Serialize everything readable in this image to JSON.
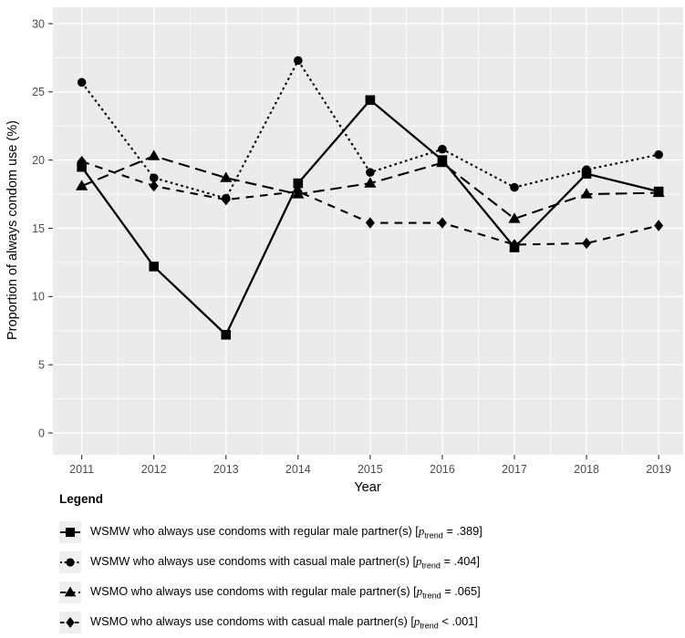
{
  "figure": {
    "panel_bg": "#ebebeb",
    "grid_color": "#ffffff",
    "series_color": "#000000",
    "tick_color": "#333333",
    "tick_label_color": "#4d4d4d"
  },
  "chart_data": {
    "type": "line",
    "title": "",
    "xlabel": "Year",
    "ylabel": "Proportion of always condom use (%)",
    "x": [
      2011,
      2012,
      2013,
      2014,
      2015,
      2016,
      2017,
      2018,
      2019
    ],
    "y_ticks": [
      0,
      5,
      10,
      15,
      20,
      25,
      30
    ],
    "xlim": [
      2010.6,
      2019.34
    ],
    "ylim": [
      -1.6,
      31.2
    ],
    "grid": "major+minor, white on gray panel",
    "legend_position": "bottom-left",
    "series": [
      {
        "name": "WSMW who always use condoms with regular male partner(s) [p trend = .389]",
        "marker": "square",
        "linestyle": "solid",
        "values": [
          19.5,
          12.2,
          7.2,
          18.3,
          24.4,
          20.0,
          13.6,
          19.0,
          17.7
        ]
      },
      {
        "name": "WSMW who always use condoms with casual male partner(s) [p trend = .404]",
        "marker": "circle",
        "linestyle": "dotted",
        "values": [
          25.7,
          18.7,
          17.2,
          27.3,
          19.1,
          20.8,
          18.0,
          19.3,
          20.4
        ]
      },
      {
        "name": "WSMO who always use condoms with regular male partner(s) [p trend = .065]",
        "marker": "triangle",
        "linestyle": "longdash",
        "values": [
          18.1,
          20.3,
          18.7,
          17.5,
          18.3,
          19.8,
          15.7,
          17.5,
          17.6
        ]
      },
      {
        "name": "WSMO who always use condoms with casual male partner(s) [p trend < .001]",
        "marker": "diamond",
        "linestyle": "dashed",
        "values": [
          19.9,
          18.1,
          17.1,
          17.7,
          15.4,
          15.4,
          13.8,
          13.9,
          15.2
        ]
      }
    ]
  },
  "legend": {
    "title": "Legend",
    "items": [
      {
        "label": "WSMW who always use condoms with regular male partner(s) [",
        "p": "p",
        "sub": "trend",
        "stat": " = .389]"
      },
      {
        "label": "WSMW who always use condoms with casual male partner(s) [",
        "p": "p",
        "sub": "trend",
        "stat": " = .404]"
      },
      {
        "label": "WSMO who always use condoms with regular male partner(s) [",
        "p": "p",
        "sub": "trend",
        "stat": " = .065]"
      },
      {
        "label": "WSMO who always use condoms with casual male partner(s) [",
        "p": "p",
        "sub": "trend",
        "stat": " < .001]"
      }
    ]
  }
}
